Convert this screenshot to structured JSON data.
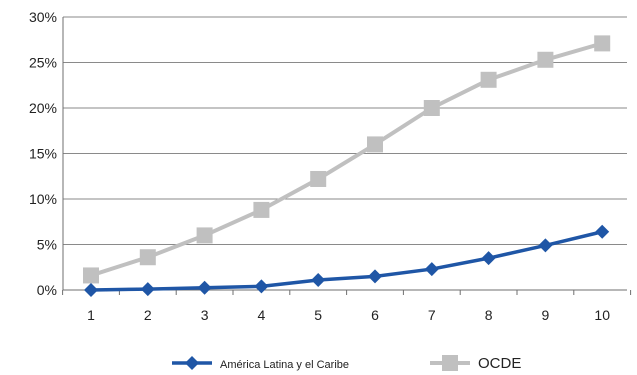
{
  "chart_data": {
    "type": "line",
    "x": [
      "1",
      "2",
      "3",
      "4",
      "5",
      "6",
      "7",
      "8",
      "9",
      "10"
    ],
    "ylim": [
      0,
      30
    ],
    "yticks": [
      "0%",
      "5%",
      "10%",
      "15%",
      "20%",
      "25%",
      "30%"
    ],
    "ytick_values": [
      0,
      5,
      10,
      15,
      20,
      25,
      30
    ],
    "grid": true,
    "legend_position": "bottom",
    "series": [
      {
        "name": "OCDE",
        "color": "#c0c0c0",
        "marker": "square",
        "values": [
          1.6,
          3.6,
          6.0,
          8.8,
          12.2,
          16.0,
          20.0,
          23.1,
          25.3,
          27.1
        ]
      },
      {
        "name": "América Latina y el Caribe",
        "color": "#1f56a6",
        "marker": "diamond",
        "values": [
          0.0,
          0.1,
          0.25,
          0.4,
          1.1,
          1.5,
          2.3,
          3.5,
          4.9,
          6.4
        ]
      }
    ]
  }
}
